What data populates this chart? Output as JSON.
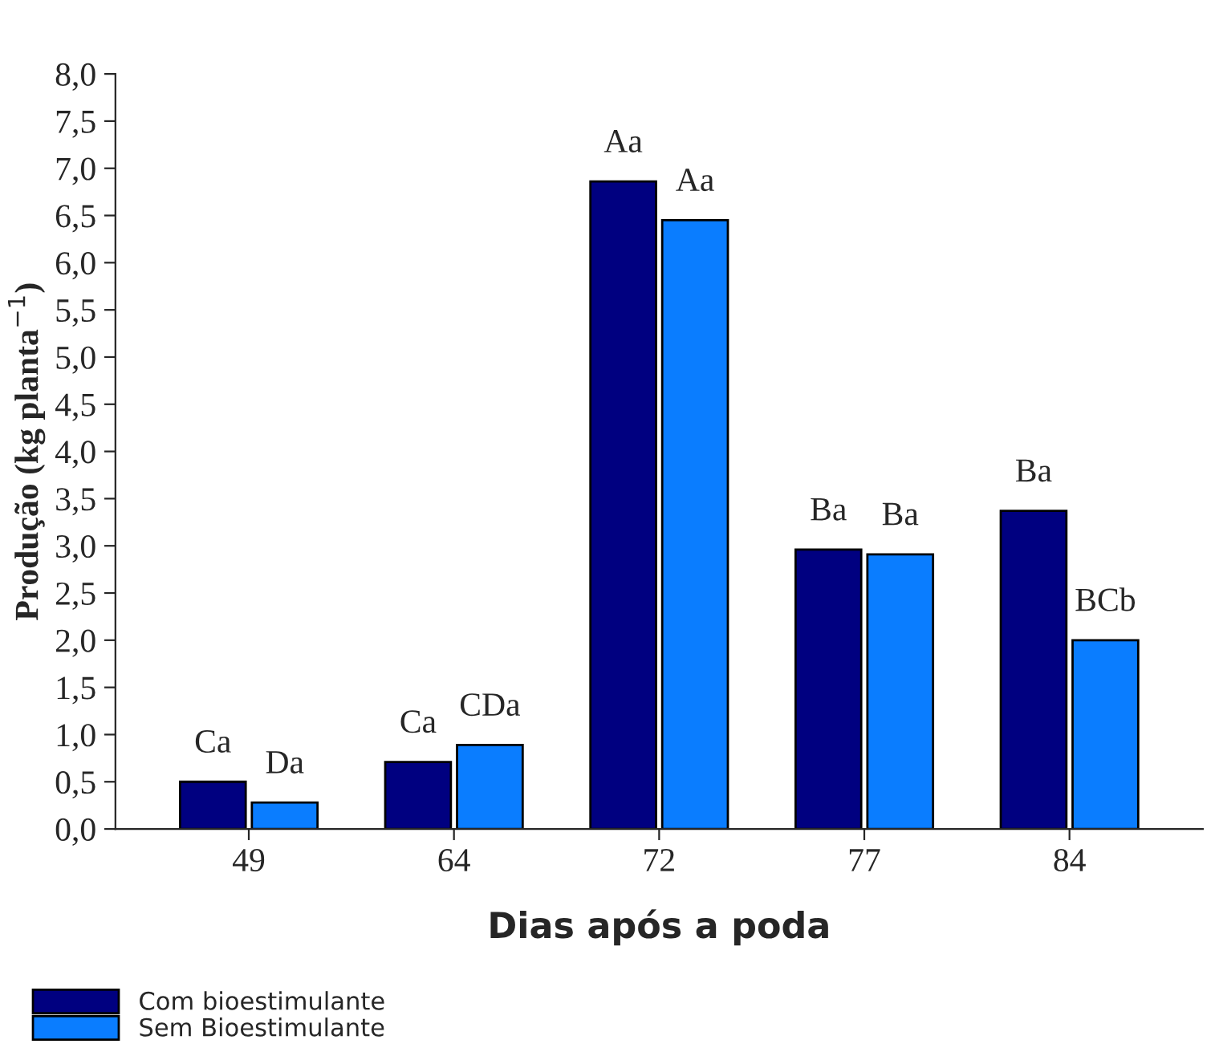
{
  "chart_data": {
    "type": "bar",
    "xlabel": "Dias após a poda",
    "ylabel": "Produção (kg planta$^{−1}$)",
    "categories": [
      "49",
      "64",
      "72",
      "77",
      "84"
    ],
    "series": [
      {
        "name": "Com bioestimulante",
        "color": "#000080",
        "values": [
          0.5,
          0.71,
          6.86,
          2.96,
          3.37
        ],
        "value_labels": [
          "Ca",
          "Ca",
          "Aa",
          "Ba",
          "Ba"
        ]
      },
      {
        "name": "Sem Bioestimulante",
        "color": "#0a7dff",
        "values": [
          0.28,
          0.89,
          6.45,
          2.91,
          2.0
        ],
        "value_labels": [
          "Da",
          "CDa",
          "Aa",
          "Ba",
          "BCb"
        ]
      }
    ],
    "ylim": [
      0,
      8
    ],
    "yticks": [
      {
        "value": 0,
        "label": "0,0"
      },
      {
        "value": 0.5,
        "label": "0,5"
      },
      {
        "value": 1,
        "label": "1,0"
      },
      {
        "value": 1.5,
        "label": "1,5"
      },
      {
        "value": 2,
        "label": "2,0"
      },
      {
        "value": 2.5,
        "label": "2,5"
      },
      {
        "value": 3,
        "label": "3,0"
      },
      {
        "value": 3.5,
        "label": "3,5"
      },
      {
        "value": 4,
        "label": "4,0"
      },
      {
        "value": 4.5,
        "label": "4,5"
      },
      {
        "value": 5,
        "label": "5,0"
      },
      {
        "value": 5.5,
        "label": "5,5"
      },
      {
        "value": 6,
        "label": "6,0"
      },
      {
        "value": 6.5,
        "label": "6,5"
      },
      {
        "value": 7,
        "label": "7,0"
      },
      {
        "value": 7.5,
        "label": "7,5"
      },
      {
        "value": 8,
        "label": "8,0"
      }
    ],
    "grid": false,
    "legend": "bottom left"
  }
}
